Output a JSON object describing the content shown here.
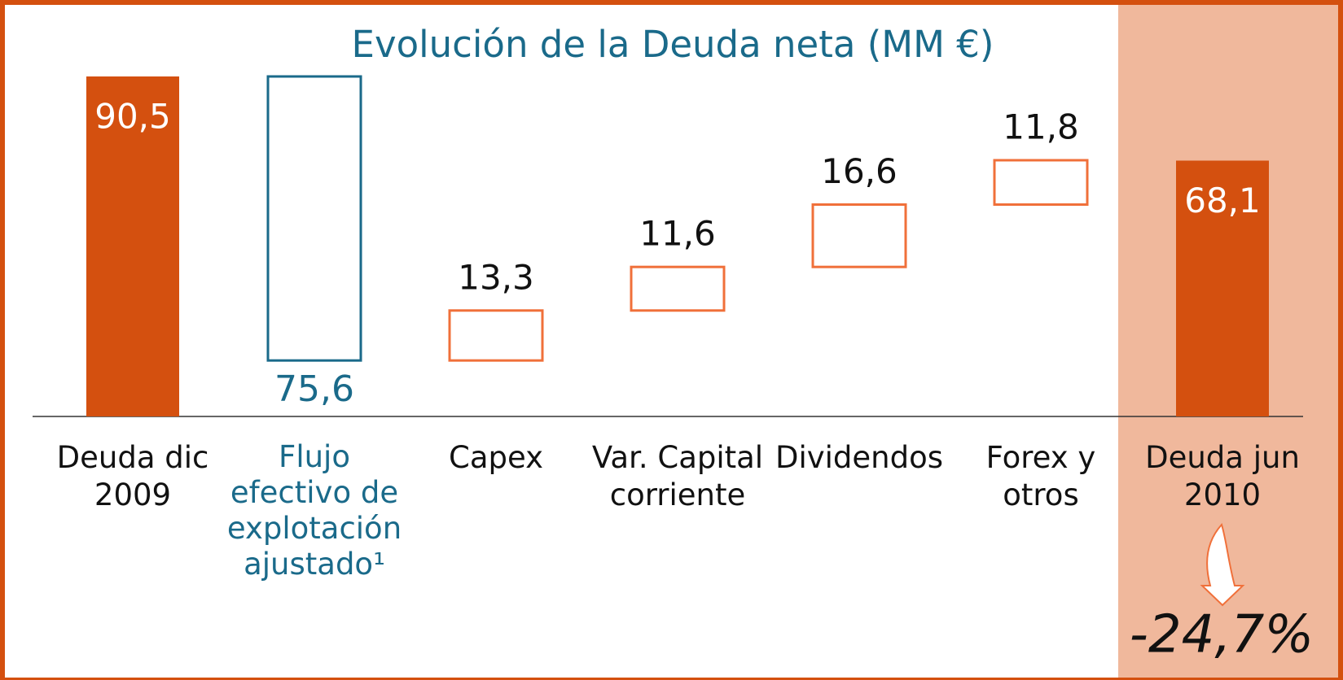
{
  "chart_data": {
    "type": "waterfall",
    "title": "Evolución de la Deuda neta (MM €)",
    "categories": [
      "Deuda dic 2009",
      "Flujo efectivo de explotación ajustado¹",
      "Capex",
      "Var. Capital corriente",
      "Dividendos",
      "Forex y otros",
      "Deuda jun 2010"
    ],
    "values": [
      90.5,
      75.6,
      13.3,
      11.6,
      16.6,
      11.8,
      68.1
    ],
    "value_labels": [
      "90,5",
      "75,6",
      "13,3",
      "11,6",
      "16,6",
      "11,8",
      "68,1"
    ],
    "measures": [
      "total",
      "decrease",
      "increase",
      "increase",
      "increase",
      "increase",
      "total"
    ],
    "colors": {
      "total": "#d4500f",
      "decrease": "#1a6a8a",
      "increase": "#f0703a",
      "highlight": "#f0b89c",
      "frame": "#d4500f"
    },
    "annotation": "-24,7%"
  }
}
